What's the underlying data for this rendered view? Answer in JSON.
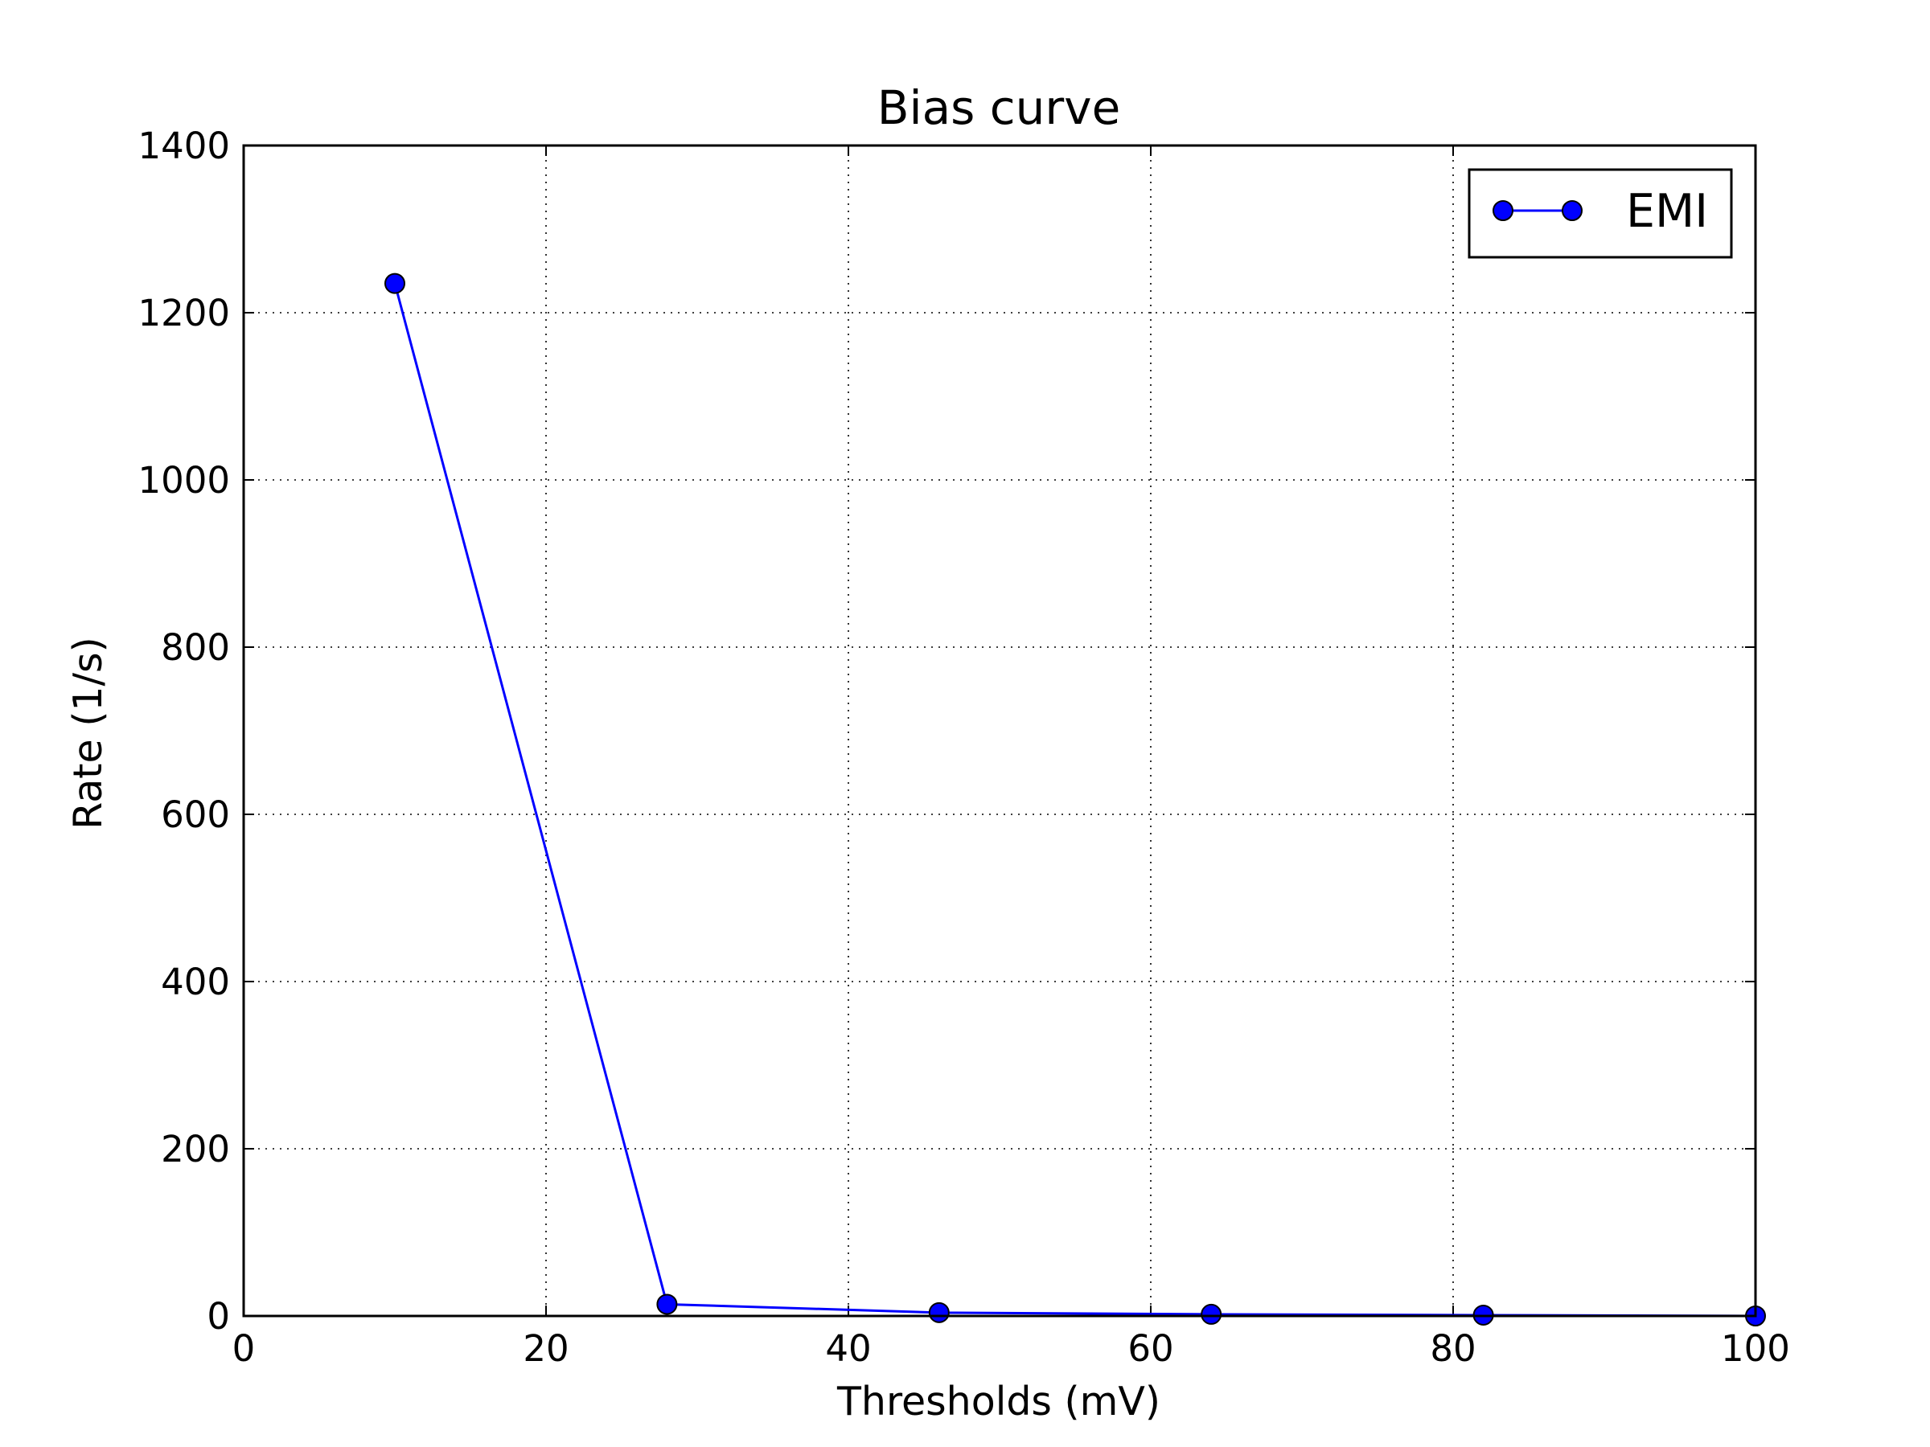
{
  "chart_data": {
    "type": "line",
    "title": "Bias curve",
    "xlabel": "Thresholds (mV)",
    "ylabel": "Rate (1/s)",
    "xlim": [
      0,
      100
    ],
    "ylim": [
      0,
      1400
    ],
    "xticks": [
      0,
      20,
      40,
      60,
      80,
      100
    ],
    "yticks": [
      0,
      200,
      400,
      600,
      800,
      1000,
      1200,
      1400
    ],
    "xtick_labels": [
      "0",
      "20",
      "40",
      "60",
      "80",
      "100"
    ],
    "ytick_labels": [
      "0",
      "200",
      "400",
      "600",
      "800",
      "1000",
      "1200",
      "1400"
    ],
    "grid": true,
    "legend_position": "top-right",
    "series": [
      {
        "name": "EMI",
        "color": "#0000ff",
        "marker": "circle",
        "x": [
          10,
          28,
          46,
          64,
          82,
          100
        ],
        "y": [
          1235,
          14,
          4,
          2,
          1,
          0
        ]
      }
    ]
  }
}
